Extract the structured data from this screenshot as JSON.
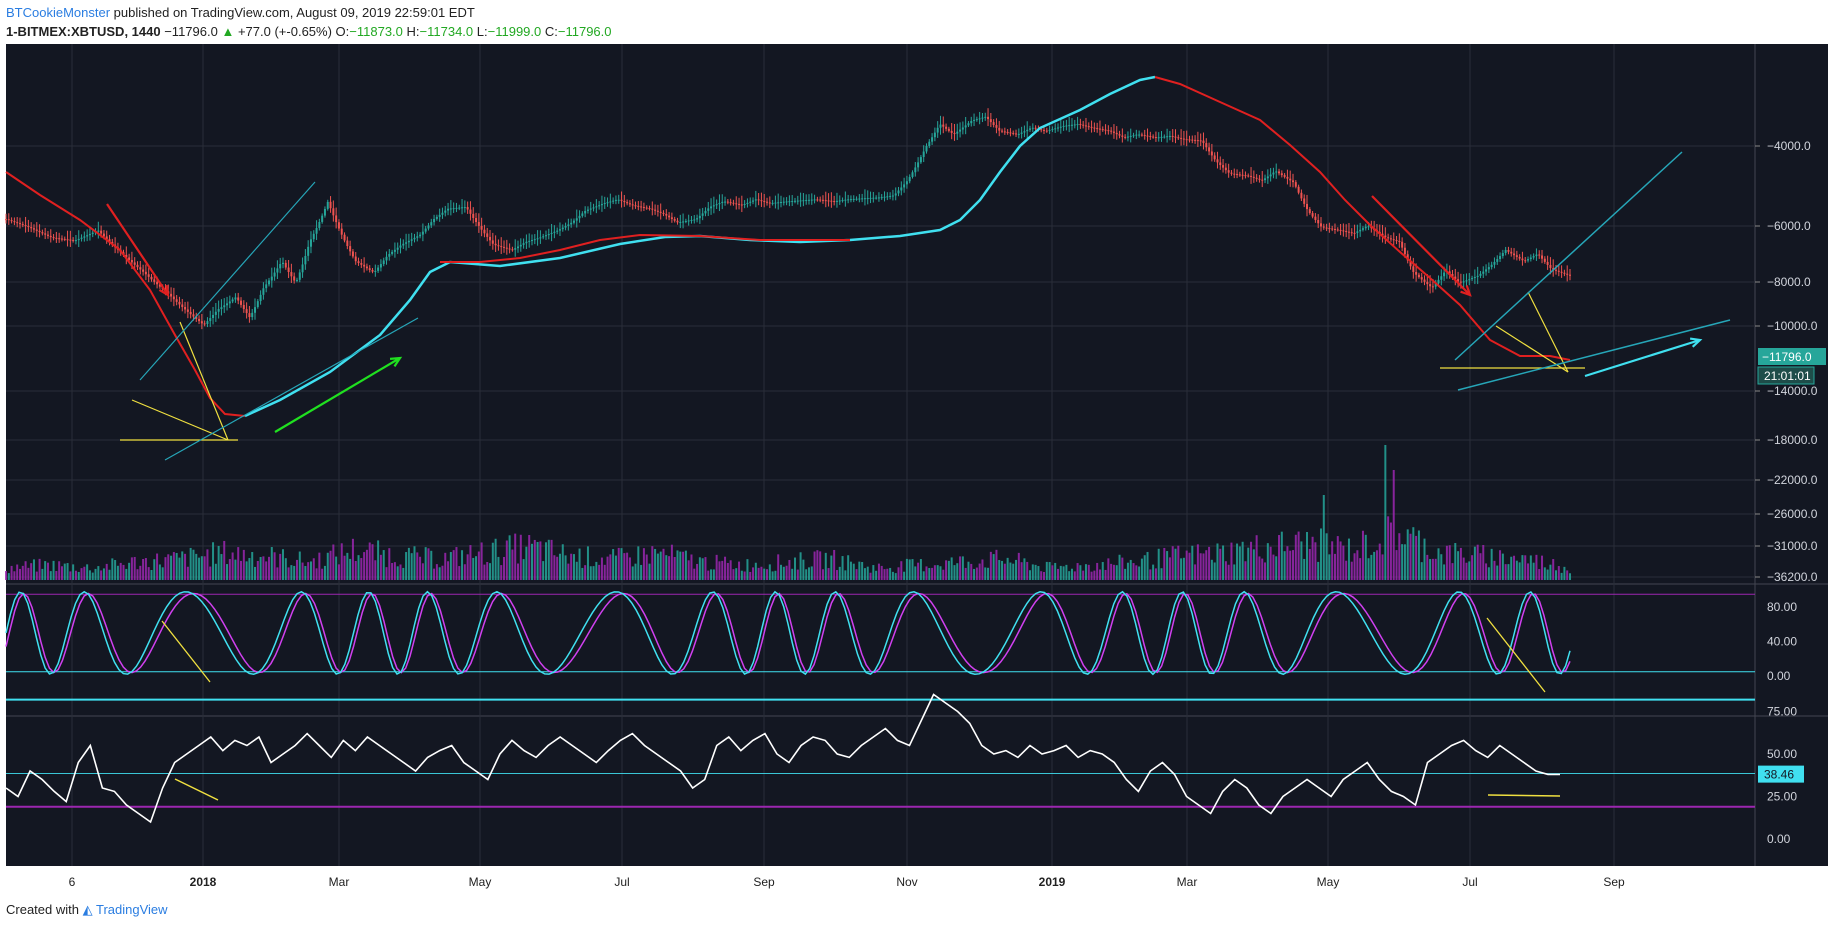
{
  "header": {
    "author": "BTCookieMonster",
    "published": "published on TradingView.com, August 09, 2019 22:59:01 EDT",
    "symbol": "1-BITMEX:XBTUSD, 1440",
    "last": "−11796.0",
    "change": "+77.0 (+-0.65%)",
    "open_label": "O:",
    "open": "−11873.0",
    "high_label": "H:",
    "high": "−11734.0",
    "low_label": "L:",
    "low": "−11999.0",
    "close_label": "C:",
    "close": "−11796.0"
  },
  "footer": {
    "created": "Created with",
    "brand": "TradingView"
  },
  "colors": {
    "background": "#131722",
    "grid": "#2a2e39",
    "candle_up": "#26a69a",
    "candle_down": "#ef5350",
    "ma_red": "#e02020",
    "ma_cyan": "#40e0f0",
    "volume_purple": "#9c27b0",
    "volume_teal": "#26a69a",
    "stoch_k": "#40e0f0",
    "stoch_d": "#d040f0",
    "rsi": "#ffffff",
    "trend_yellow": "#f0e040",
    "trend_teal": "#26a6b8",
    "arrow_green": "#20e020",
    "price_tag": "#26a69a",
    "rsi_tag": "#40e0f0"
  },
  "chart_data": [
    {
      "type": "candlestick",
      "x_ticks": [
        "6",
        "2018",
        "Mar",
        "May",
        "Jul",
        "Sep",
        "Nov",
        "2019",
        "Mar",
        "May",
        "Jul",
        "Sep"
      ],
      "y_ticks": [
        "−4000.0",
        "−6000.0",
        "−8000.0",
        "−10000.0",
        "−14000.0",
        "−18000.0",
        "−22000.0",
        "−26000.0",
        "−31000.0",
        "−36200.0"
      ],
      "price_tag": "−11796.0",
      "countdown_tag": "21:01:01",
      "price_path": [
        [
          0,
          -7500
        ],
        [
          0.5,
          -8000
        ],
        [
          1,
          -8700
        ],
        [
          1.5,
          -8900
        ],
        [
          2,
          -8200
        ],
        [
          2.5,
          -9800
        ],
        [
          3,
          -11500
        ],
        [
          3.5,
          -13500
        ],
        [
          4,
          -16000
        ],
        [
          4.3,
          -17500
        ],
        [
          4.6,
          -15500
        ],
        [
          5,
          -14000
        ],
        [
          5.3,
          -16500
        ],
        [
          5.6,
          -13000
        ],
        [
          6,
          -10500
        ],
        [
          6.3,
          -12500
        ],
        [
          6.6,
          -9000
        ],
        [
          7,
          -6500
        ],
        [
          7.3,
          -8500
        ],
        [
          7.6,
          -10500
        ],
        [
          8,
          -11500
        ],
        [
          8.3,
          -10000
        ],
        [
          8.6,
          -9200
        ],
        [
          9,
          -8500
        ],
        [
          9.3,
          -7500
        ],
        [
          9.6,
          -6900
        ],
        [
          10,
          -6800
        ],
        [
          10.3,
          -8000
        ],
        [
          10.6,
          -9200
        ],
        [
          11,
          -9600
        ],
        [
          11.3,
          -9000
        ],
        [
          11.6,
          -8700
        ],
        [
          12,
          -8200
        ],
        [
          12.3,
          -7700
        ],
        [
          12.6,
          -7000
        ],
        [
          13,
          -6600
        ],
        [
          13.3,
          -6400
        ],
        [
          13.6,
          -6700
        ],
        [
          14,
          -6900
        ],
        [
          14.3,
          -7200
        ],
        [
          14.6,
          -7700
        ],
        [
          15,
          -7500
        ],
        [
          15.3,
          -6800
        ],
        [
          15.6,
          -6500
        ],
        [
          16,
          -6700
        ],
        [
          16.3,
          -6400
        ],
        [
          16.6,
          -6600
        ],
        [
          17,
          -6500
        ],
        [
          17.3,
          -6450
        ],
        [
          17.6,
          -6400
        ],
        [
          18,
          -6500
        ],
        [
          18.3,
          -6400
        ],
        [
          18.6,
          -6350
        ],
        [
          19,
          -6300
        ],
        [
          19.3,
          -6200
        ],
        [
          19.6,
          -5500
        ],
        [
          20,
          -4200
        ],
        [
          20.3,
          -3500
        ],
        [
          20.6,
          -3800
        ],
        [
          21,
          -3400
        ],
        [
          21.3,
          -3300
        ],
        [
          21.6,
          -3700
        ],
        [
          22,
          -3800
        ],
        [
          22.3,
          -3600
        ],
        [
          22.6,
          -3700
        ],
        [
          23,
          -3550
        ],
        [
          23.3,
          -3500
        ],
        [
          23.6,
          -3600
        ],
        [
          24,
          -3700
        ],
        [
          24.3,
          -3900
        ],
        [
          24.6,
          -3800
        ],
        [
          25,
          -3900
        ],
        [
          25.3,
          -3850
        ],
        [
          25.6,
          -3950
        ],
        [
          26,
          -4000
        ],
        [
          26.3,
          -4700
        ],
        [
          26.6,
          -5200
        ],
        [
          27,
          -5300
        ],
        [
          27.3,
          -5500
        ],
        [
          27.6,
          -5100
        ],
        [
          28,
          -5600
        ],
        [
          28.3,
          -7000
        ],
        [
          28.6,
          -8000
        ],
        [
          29,
          -8200
        ],
        [
          29.3,
          -8400
        ],
        [
          29.6,
          -7900
        ],
        [
          30,
          -8700
        ],
        [
          30.3,
          -9000
        ],
        [
          30.6,
          -11500
        ],
        [
          31,
          -13000
        ],
        [
          31.3,
          -11300
        ],
        [
          31.6,
          -12500
        ],
        [
          32,
          -11800
        ],
        [
          32.3,
          -10800
        ],
        [
          32.6,
          -9600
        ],
        [
          33,
          -10500
        ],
        [
          33.3,
          -9900
        ],
        [
          33.6,
          -11200
        ],
        [
          34,
          -11796
        ]
      ],
      "volume_levels": [
        0.2,
        0.25,
        0.2,
        0.3,
        0.35,
        0.45,
        0.4,
        0.3,
        0.5,
        0.4,
        0.35,
        0.45,
        0.55,
        0.4,
        0.35,
        0.45,
        0.3,
        0.25,
        0.3,
        0.35,
        0.2,
        0.25,
        0.3,
        0.35,
        0.2,
        0.25,
        0.3,
        0.4,
        0.45,
        0.55,
        0.6,
        0.5,
        0.8,
        0.45,
        0.4,
        0.35,
        0.2
      ],
      "overlays": [
        "moving-average-red",
        "moving-average-cyan",
        "trendlines",
        "direction-arrows"
      ]
    },
    {
      "type": "line",
      "name": "stochastic",
      "y_ticks": [
        "80.00",
        "40.00",
        "0.00"
      ],
      "upper_band": 95,
      "lower_band": 5
    },
    {
      "type": "line",
      "name": "rsi",
      "y_ticks": [
        "75.00",
        "50.00",
        "25.00",
        "0.00"
      ],
      "last_value": 38.46,
      "last_tag": "38.46",
      "upper_band": 82,
      "lower_band": 19,
      "mid_band": 38.5,
      "values": [
        30,
        25,
        40,
        35,
        28,
        22,
        45,
        55,
        30,
        28,
        20,
        15,
        10,
        30,
        45,
        50,
        55,
        60,
        52,
        58,
        55,
        60,
        45,
        50,
        55,
        62,
        55,
        48,
        58,
        52,
        60,
        55,
        50,
        45,
        40,
        48,
        52,
        55,
        45,
        40,
        35,
        50,
        58,
        52,
        48,
        55,
        60,
        55,
        50,
        45,
        52,
        58,
        62,
        55,
        50,
        45,
        40,
        30,
        35,
        55,
        60,
        52,
        58,
        62,
        50,
        45,
        55,
        60,
        58,
        50,
        48,
        55,
        60,
        65,
        58,
        55,
        70,
        85,
        80,
        75,
        68,
        55,
        50,
        52,
        48,
        55,
        50,
        52,
        55,
        48,
        52,
        50,
        45,
        35,
        28,
        40,
        45,
        38,
        25,
        20,
        15,
        28,
        35,
        30,
        20,
        15,
        25,
        30,
        35,
        30,
        25,
        35,
        40,
        45,
        35,
        28,
        25,
        20,
        45,
        50,
        55,
        58,
        52,
        48,
        55,
        50,
        45,
        40,
        38,
        38
      ]
    }
  ]
}
